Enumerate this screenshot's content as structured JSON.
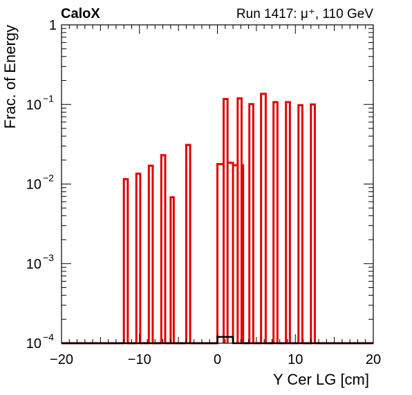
{
  "chart_data": {
    "type": "histogram",
    "title_left": "CaloX",
    "title_right": "Run 1417:   μ⁺, 110 GeV",
    "xlabel": "Y Cer LG [cm]",
    "ylabel": "Frac. of Energy",
    "xlim": [
      -20,
      20
    ],
    "ylim": [
      0.0001,
      1
    ],
    "yscale": "log",
    "x_ticks": [
      {
        "value": -20,
        "label": "−20"
      },
      {
        "value": -10,
        "label": "−10"
      },
      {
        "value": 0,
        "label": "0"
      },
      {
        "value": 10,
        "label": "10"
      },
      {
        "value": 20,
        "label": "20"
      }
    ],
    "y_ticks": [
      {
        "value": 1,
        "base": "1",
        "exp": ""
      },
      {
        "value": 0.1,
        "base": "10",
        "exp": "−1"
      },
      {
        "value": 0.01,
        "base": "10",
        "exp": "−2"
      },
      {
        "value": 0.001,
        "base": "10",
        "exp": "−3"
      },
      {
        "value": 0.0001,
        "base": "10",
        "exp": "−4"
      }
    ],
    "series": [
      {
        "color": "#e00000",
        "baseline": 0.0001,
        "bins": [
          {
            "x0": -12.0,
            "x1": -11.5,
            "y": 0.0115
          },
          {
            "x0": -10.4,
            "x1": -9.9,
            "y": 0.0135
          },
          {
            "x0": -8.8,
            "x1": -8.3,
            "y": 0.017
          },
          {
            "x0": -7.2,
            "x1": -6.7,
            "y": 0.023
          },
          {
            "x0": -6.0,
            "x1": -5.6,
            "y": 0.0068
          },
          {
            "x0": -4.0,
            "x1": -3.5,
            "y": 0.031
          },
          {
            "x0": 0.0,
            "x1": 0.8,
            "y": 0.0178
          },
          {
            "x0": 0.8,
            "x1": 1.3,
            "y": 0.117
          },
          {
            "x0": 1.3,
            "x1": 2.0,
            "y": 0.0185
          },
          {
            "x0": 2.0,
            "x1": 2.6,
            "y": 0.0172
          },
          {
            "x0": 2.6,
            "x1": 3.1,
            "y": 0.119
          },
          {
            "x0": 3.1,
            "x1": 3.3,
            "y": 0.0172
          },
          {
            "x0": 4.1,
            "x1": 4.6,
            "y": 0.101
          },
          {
            "x0": 5.6,
            "x1": 6.2,
            "y": 0.136
          },
          {
            "x0": 7.2,
            "x1": 7.7,
            "y": 0.107
          },
          {
            "x0": 8.8,
            "x1": 9.3,
            "y": 0.107
          },
          {
            "x0": 10.4,
            "x1": 10.9,
            "y": 0.098
          },
          {
            "x0": 12.0,
            "x1": 12.5,
            "y": 0.1
          }
        ]
      },
      {
        "color": "#000000",
        "baseline": 0.0001,
        "bins": [
          {
            "x0": 0.0,
            "x1": 2.0,
            "y": 0.00012
          }
        ]
      }
    ],
    "grid": false
  }
}
